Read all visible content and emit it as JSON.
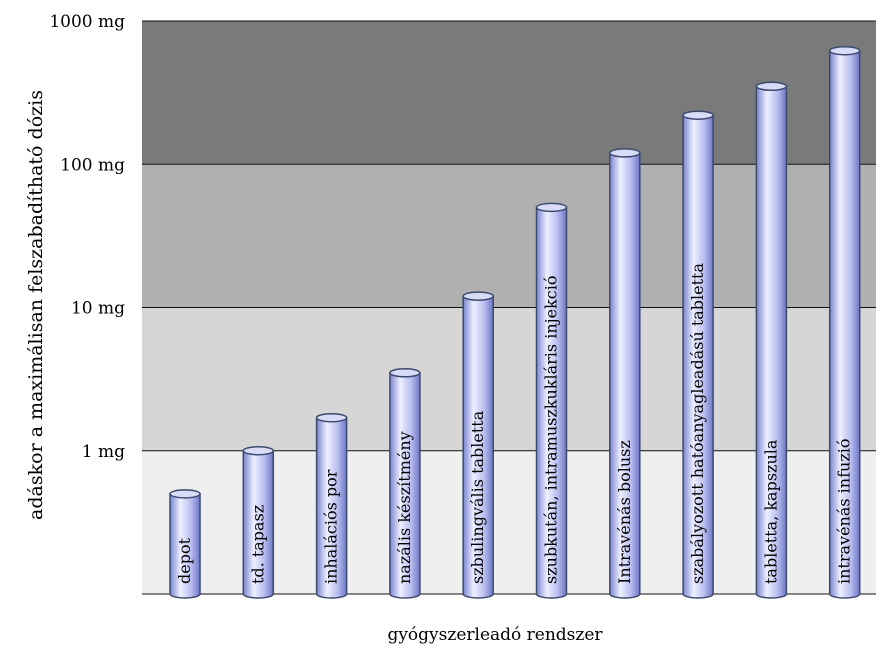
{
  "chart_data": {
    "type": "bar",
    "title": "",
    "xlabel": "gyógyszerleadó rendszer",
    "ylabel": "adáskor a maximálisan felszabadítható dózis",
    "y_scale": "log",
    "ylim": [
      0.1,
      1000
    ],
    "y_ticks": [
      {
        "value": 1,
        "label": "1 mg"
      },
      {
        "value": 10,
        "label": "10 mg"
      },
      {
        "value": 100,
        "label": "100 mg"
      },
      {
        "value": 1000,
        "label": "1000 mg"
      }
    ],
    "categories": [
      "depot",
      "td. tapasz",
      "inhalációs por",
      "nazális készítmény",
      "szbulingvális tabletta",
      "szubkután, intramuszkukláris injekció",
      "Intravénás bolusz",
      "szabályozott hatóanyagleadású tabletta",
      "tabletta, kapszula",
      "intravénás infuzió"
    ],
    "values": [
      0.5,
      1.0,
      1.7,
      3.5,
      12,
      50,
      120,
      220,
      350,
      620
    ],
    "grid": true,
    "legend": "none"
  },
  "colors": {
    "band_top": "#7a7a7a",
    "band_2": "#b0b0b0",
    "band_3": "#d6d6d6",
    "band_bottom": "#efefef",
    "bar_light": "#f2f2ff",
    "bar_mid": "#b8bdf0",
    "bar_dark": "#6f78c8",
    "bar_stroke": "#3c4a6e"
  }
}
